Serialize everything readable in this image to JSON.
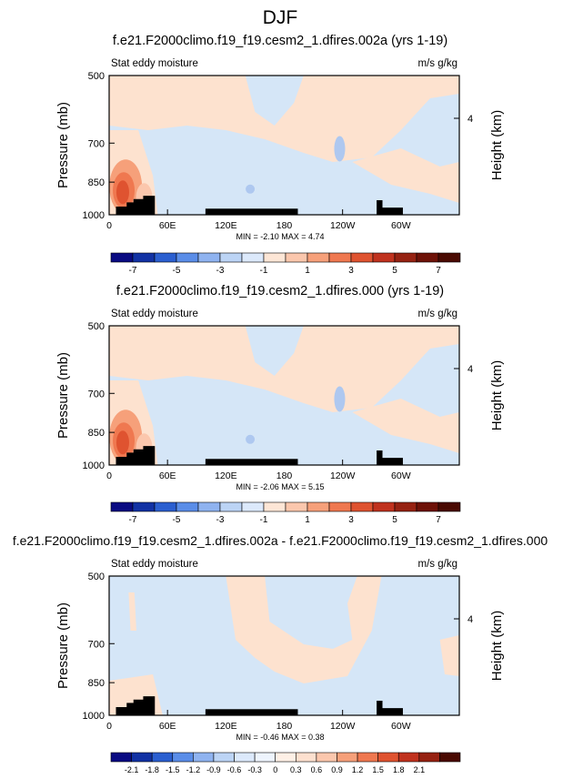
{
  "page": {
    "title": "DJF"
  },
  "colors": {
    "ocean_light": "#d5e6f7",
    "land_mask": "#000000",
    "warm_light": "#fde2cf",
    "cool": "#aec8f0"
  },
  "chart_data": [
    {
      "type": "heatmap",
      "title": "f.e21.F2000climo.f19_f19.cesm2_1.dfires.002a (yrs 1-19)",
      "left_subtitle": "Stat eddy moisture",
      "right_subtitle": "m/s g/kg",
      "ylabel": "Pressure (mb)",
      "ylabel_right": "Height (km)",
      "y_ticks": [
        "500",
        "700",
        "850",
        "1000"
      ],
      "y_right_ticks": [
        "4"
      ],
      "x_ticks": [
        "0",
        "60E",
        "120E",
        "180",
        "120W",
        "60W"
      ],
      "xlim": [
        0,
        360
      ],
      "ylim": [
        1000,
        500
      ],
      "stats": "MIN = -2.10   MAX =  4.74",
      "min": -2.1,
      "max": 4.74,
      "colorbar_labels": [
        "-7",
        "-5",
        "-3",
        "-1",
        "1",
        "3",
        "5",
        "7"
      ]
    },
    {
      "type": "heatmap",
      "title": "f.e21.F2000climo.f19_f19.cesm2_1.dfires.000 (yrs 1-19)",
      "left_subtitle": "Stat eddy moisture",
      "right_subtitle": "m/s g/kg",
      "ylabel": "Pressure (mb)",
      "ylabel_right": "Height (km)",
      "y_ticks": [
        "500",
        "700",
        "850",
        "1000"
      ],
      "y_right_ticks": [
        "4"
      ],
      "x_ticks": [
        "0",
        "60E",
        "120E",
        "180",
        "120W",
        "60W"
      ],
      "xlim": [
        0,
        360
      ],
      "ylim": [
        1000,
        500
      ],
      "stats": "MIN = -2.06   MAX =  5.15",
      "min": -2.06,
      "max": 5.15,
      "colorbar_labels": [
        "-7",
        "-5",
        "-3",
        "-1",
        "1",
        "3",
        "5",
        "7"
      ]
    },
    {
      "type": "heatmap",
      "title": "f.e21.F2000climo.f19_f19.cesm2_1.dfires.002a - f.e21.F2000climo.f19_f19.cesm2_1.dfires.000",
      "left_subtitle": "Stat eddy moisture",
      "right_subtitle": "m/s g/kg",
      "ylabel": "Pressure (mb)",
      "ylabel_right": "Height (km)",
      "y_ticks": [
        "500",
        "700",
        "850",
        "1000"
      ],
      "y_right_ticks": [
        "4"
      ],
      "x_ticks": [
        "0",
        "60E",
        "120E",
        "180",
        "120W",
        "60W"
      ],
      "xlim": [
        0,
        360
      ],
      "ylim": [
        1000,
        500
      ],
      "stats": "MIN = -0.46   MAX =  0.38",
      "min": -0.46,
      "max": 0.38,
      "colorbar_labels": [
        "-2.1",
        "-1.8",
        "-1.5",
        "-1.2",
        "-0.9",
        "-0.6",
        "-0.3",
        "0",
        "0.3",
        "0.6",
        "0.9",
        "1.2",
        "1.5",
        "1.8",
        "2.1"
      ]
    }
  ]
}
